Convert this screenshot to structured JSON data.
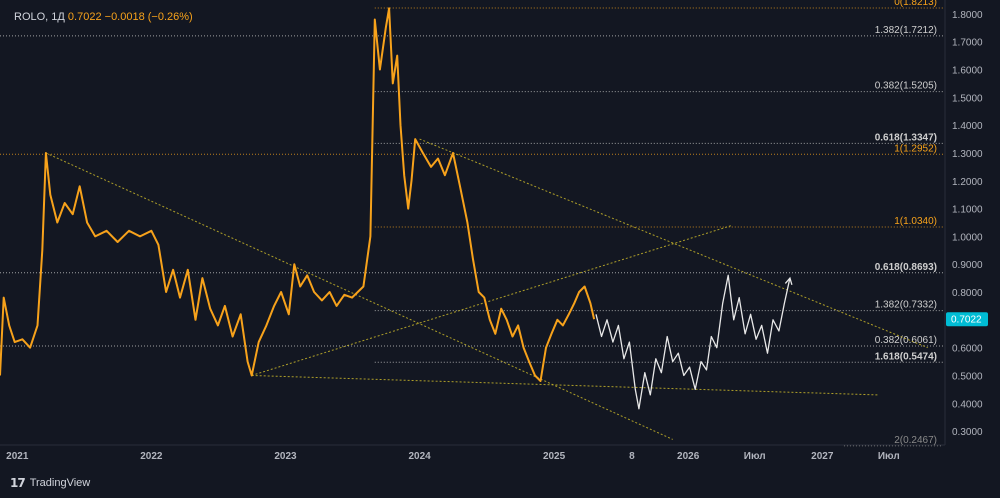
{
  "header": {
    "symbol": "ROLO, 1Д",
    "price": "0.7022",
    "change": "−0.0018 (−0.26%)"
  },
  "brand": {
    "name": "TradingView",
    "logo_icon": "tradingview-logo-icon"
  },
  "price_badge": {
    "label": "0.7022",
    "color": "#00bcd4"
  },
  "colors": {
    "background": "#131722",
    "price_line": "#f7a21b",
    "projection": "#e8e8e8",
    "trendline": "#c8b62a",
    "fib_white": "#cfcfcf",
    "fib_orange": "#f7a21b",
    "axis_text": "#b2b5be"
  },
  "chart_data": {
    "type": "line",
    "title": "",
    "xlabel": "",
    "ylabel": "",
    "ylim": [
      0.25,
      1.85
    ],
    "xlim": [
      "2020-11-15",
      "2027-12-01"
    ],
    "grid": false,
    "y_ticks": [
      "1.8000",
      "1.7000",
      "1.6000",
      "1.5000",
      "1.4000",
      "1.3000",
      "1.2000",
      "1.1000",
      "1.0000",
      "0.9000",
      "0.8000",
      "0.7000",
      "0.6000",
      "0.5000",
      "0.4000",
      "0.3000"
    ],
    "x_ticks": [
      {
        "label": "2021",
        "date": "2021-01-01"
      },
      {
        "label": "2022",
        "date": "2022-01-01"
      },
      {
        "label": "2023",
        "date": "2023-01-01"
      },
      {
        "label": "2024",
        "date": "2024-01-01"
      },
      {
        "label": "2025",
        "date": "2025-01-01"
      },
      {
        "label": "8",
        "date": "2025-08-01"
      },
      {
        "label": "2026",
        "date": "2026-01-01"
      },
      {
        "label": "Июл",
        "date": "2026-07-01"
      },
      {
        "label": "2027",
        "date": "2027-01-01"
      },
      {
        "label": "Июл",
        "date": "2027-07-01"
      }
    ],
    "series": [
      {
        "color": "#f7a21b",
        "points": [
          [
            "2020-11-15",
            0.5
          ],
          [
            "2020-11-25",
            0.78
          ],
          [
            "2020-12-10",
            0.68
          ],
          [
            "2020-12-25",
            0.62
          ],
          [
            "2021-01-15",
            0.63
          ],
          [
            "2021-02-05",
            0.6
          ],
          [
            "2021-02-25",
            0.68
          ],
          [
            "2021-03-10",
            0.95
          ],
          [
            "2021-03-20",
            1.3
          ],
          [
            "2021-04-01",
            1.15
          ],
          [
            "2021-04-20",
            1.05
          ],
          [
            "2021-05-10",
            1.12
          ],
          [
            "2021-06-01",
            1.08
          ],
          [
            "2021-06-20",
            1.18
          ],
          [
            "2021-07-10",
            1.05
          ],
          [
            "2021-08-01",
            1.0
          ],
          [
            "2021-09-01",
            1.02
          ],
          [
            "2021-10-01",
            0.98
          ],
          [
            "2021-11-01",
            1.02
          ],
          [
            "2021-12-01",
            1.0
          ],
          [
            "2022-01-01",
            1.02
          ],
          [
            "2022-01-20",
            0.97
          ],
          [
            "2022-02-10",
            0.8
          ],
          [
            "2022-03-01",
            0.88
          ],
          [
            "2022-03-20",
            0.78
          ],
          [
            "2022-04-10",
            0.88
          ],
          [
            "2022-05-01",
            0.7
          ],
          [
            "2022-05-20",
            0.85
          ],
          [
            "2022-06-10",
            0.74
          ],
          [
            "2022-07-01",
            0.68
          ],
          [
            "2022-07-20",
            0.75
          ],
          [
            "2022-08-10",
            0.64
          ],
          [
            "2022-09-01",
            0.72
          ],
          [
            "2022-09-20",
            0.55
          ],
          [
            "2022-10-01",
            0.5
          ],
          [
            "2022-10-20",
            0.62
          ],
          [
            "2022-11-10",
            0.68
          ],
          [
            "2022-12-01",
            0.75
          ],
          [
            "2022-12-20",
            0.8
          ],
          [
            "2023-01-10",
            0.72
          ],
          [
            "2023-01-25",
            0.9
          ],
          [
            "2023-02-10",
            0.82
          ],
          [
            "2023-03-01",
            0.86
          ],
          [
            "2023-03-20",
            0.8
          ],
          [
            "2023-04-10",
            0.77
          ],
          [
            "2023-05-01",
            0.8
          ],
          [
            "2023-05-20",
            0.75
          ],
          [
            "2023-06-10",
            0.79
          ],
          [
            "2023-07-01",
            0.78
          ],
          [
            "2023-08-01",
            0.82
          ],
          [
            "2023-08-20",
            1.0
          ],
          [
            "2023-09-01",
            1.78
          ],
          [
            "2023-09-15",
            1.6
          ],
          [
            "2023-10-01",
            1.75
          ],
          [
            "2023-10-10",
            1.82
          ],
          [
            "2023-10-20",
            1.55
          ],
          [
            "2023-11-01",
            1.65
          ],
          [
            "2023-11-10",
            1.4
          ],
          [
            "2023-11-20",
            1.22
          ],
          [
            "2023-12-01",
            1.1
          ],
          [
            "2023-12-10",
            1.2
          ],
          [
            "2023-12-20",
            1.35
          ],
          [
            "2024-01-10",
            1.3
          ],
          [
            "2024-02-01",
            1.25
          ],
          [
            "2024-02-20",
            1.28
          ],
          [
            "2024-03-10",
            1.22
          ],
          [
            "2024-04-01",
            1.3
          ],
          [
            "2024-04-20",
            1.18
          ],
          [
            "2024-05-10",
            1.05
          ],
          [
            "2024-05-25",
            0.92
          ],
          [
            "2024-06-10",
            0.8
          ],
          [
            "2024-06-25",
            0.78
          ],
          [
            "2024-07-10",
            0.7
          ],
          [
            "2024-07-25",
            0.65
          ],
          [
            "2024-08-10",
            0.74
          ],
          [
            "2024-08-25",
            0.7
          ],
          [
            "2024-09-10",
            0.64
          ],
          [
            "2024-09-25",
            0.68
          ],
          [
            "2024-10-10",
            0.6
          ],
          [
            "2024-10-25",
            0.55
          ],
          [
            "2024-11-10",
            0.5
          ],
          [
            "2024-11-25",
            0.48
          ],
          [
            "2024-12-10",
            0.6
          ],
          [
            "2024-12-25",
            0.65
          ],
          [
            "2025-01-10",
            0.7
          ],
          [
            "2025-01-25",
            0.68
          ],
          [
            "2025-02-10",
            0.72
          ],
          [
            "2025-02-25",
            0.76
          ],
          [
            "2025-03-10",
            0.8
          ],
          [
            "2025-03-25",
            0.82
          ],
          [
            "2025-04-10",
            0.76
          ],
          [
            "2025-04-20",
            0.7022
          ]
        ]
      },
      {
        "color": "#e8e8e8",
        "points": [
          [
            "2025-04-25",
            0.72
          ],
          [
            "2025-05-10",
            0.64
          ],
          [
            "2025-05-25",
            0.7
          ],
          [
            "2025-06-10",
            0.62
          ],
          [
            "2025-06-25",
            0.68
          ],
          [
            "2025-07-10",
            0.56
          ],
          [
            "2025-07-25",
            0.62
          ],
          [
            "2025-08-10",
            0.45
          ],
          [
            "2025-08-20",
            0.38
          ],
          [
            "2025-09-05",
            0.51
          ],
          [
            "2025-09-20",
            0.43
          ],
          [
            "2025-10-05",
            0.56
          ],
          [
            "2025-10-20",
            0.51
          ],
          [
            "2025-11-05",
            0.64
          ],
          [
            "2025-11-20",
            0.55
          ],
          [
            "2025-12-05",
            0.58
          ],
          [
            "2025-12-20",
            0.5
          ],
          [
            "2026-01-05",
            0.53
          ],
          [
            "2026-01-20",
            0.45
          ],
          [
            "2026-02-05",
            0.55
          ],
          [
            "2026-02-20",
            0.52
          ],
          [
            "2026-03-05",
            0.64
          ],
          [
            "2026-03-20",
            0.6
          ],
          [
            "2026-04-05",
            0.76
          ],
          [
            "2026-04-20",
            0.86
          ],
          [
            "2026-05-05",
            0.7
          ],
          [
            "2026-05-20",
            0.78
          ],
          [
            "2026-06-05",
            0.65
          ],
          [
            "2026-06-20",
            0.72
          ],
          [
            "2026-07-05",
            0.63
          ],
          [
            "2026-07-20",
            0.68
          ],
          [
            "2026-08-05",
            0.58
          ],
          [
            "2026-08-20",
            0.7
          ],
          [
            "2026-09-05",
            0.66
          ],
          [
            "2026-09-20",
            0.76
          ],
          [
            "2026-10-05",
            0.85
          ]
        ],
        "arrow_end": true
      }
    ],
    "fib_levels": [
      {
        "ratio": "0",
        "value": 1.8213,
        "label": "0(1.8213)",
        "color": "#f7a21b",
        "from": "2023-09-01",
        "bold": false
      },
      {
        "ratio": "1.382",
        "value": 1.7212,
        "label": "1.382(1.7212)",
        "color": "#cfcfcf",
        "from": "2020-11-15",
        "bold": false
      },
      {
        "ratio": "0.382",
        "value": 1.5205,
        "label": "0.382(1.5205)",
        "color": "#cfcfcf",
        "from": "2023-09-01",
        "bold": false
      },
      {
        "ratio": "0.618",
        "value": 1.3347,
        "label": "0.618(1.3347)",
        "color": "#cfcfcf",
        "from": "2023-09-01",
        "bold": true
      },
      {
        "ratio": "1",
        "value": 1.2952,
        "label": "1(1.2952)",
        "color": "#f7a21b",
        "from": "2020-11-15",
        "bold": false
      },
      {
        "ratio": "1",
        "value": 1.034,
        "label": "1(1.0340)",
        "color": "#f7a21b",
        "from": "2023-09-01",
        "bold": false
      },
      {
        "ratio": "0.618",
        "value": 0.8693,
        "label": "0.618(0.8693)",
        "color": "#cfcfcf",
        "from": "2020-11-15",
        "bold": true
      },
      {
        "ratio": "1.382",
        "value": 0.7332,
        "label": "1.382(0.7332)",
        "color": "#cfcfcf",
        "from": "2023-09-01",
        "bold": false
      },
      {
        "ratio": "0.382",
        "value": 0.6061,
        "label": "0.382(0.6061)",
        "color": "#cfcfcf",
        "from": "2020-11-15",
        "bold": false
      },
      {
        "ratio": "1.618",
        "value": 0.5474,
        "label": "1.618(0.5474)",
        "color": "#cfcfcf",
        "from": "2023-09-01",
        "bold": true
      },
      {
        "ratio": "2",
        "value": 0.2467,
        "label": "2(0.2467)",
        "color": "#8a8a8a",
        "from": "2027-03-01",
        "bold": false
      }
    ],
    "trendlines": [
      {
        "from": [
          "2021-03-20",
          1.3
        ],
        "to": [
          "2025-11-20",
          0.27
        ]
      },
      {
        "from": [
          "2022-10-01",
          0.5
        ],
        "to": [
          "2026-05-01",
          1.04
        ]
      },
      {
        "from": [
          "2022-10-01",
          0.5
        ],
        "to": [
          "2027-06-01",
          0.43
        ]
      },
      {
        "from": [
          "2024-01-01",
          1.35
        ],
        "to": [
          "2027-10-15",
          0.6
        ]
      }
    ]
  }
}
